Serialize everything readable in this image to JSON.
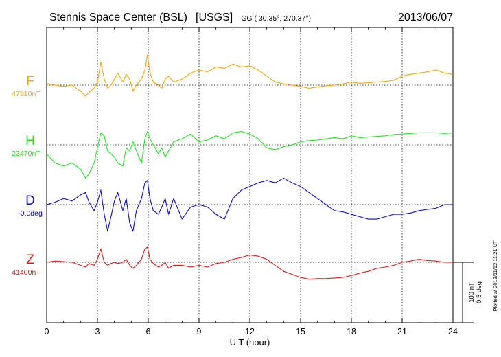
{
  "header": {
    "station": "Stennis Space Center (BSL)",
    "network": "[USGS]",
    "coords": "GG ( 30.35°, 270.37°)",
    "date": "2013/06/07"
  },
  "scale": {
    "nt": "100 nT",
    "deg": "0.5 deg",
    "plotted": "Plotted at 2013/11/12 11:21  UT"
  },
  "colors": {
    "F": "#f5a800",
    "H": "#1ee51e",
    "D": "#0a0ad2",
    "Z": "#e01a1a",
    "axis": "#000000"
  },
  "chart_data": {
    "type": "line",
    "title": "Stennis Space Center (BSL)  [USGS]",
    "xlabel": "U T (hour)",
    "xlim": [
      0,
      24
    ],
    "xticks": [
      0,
      3,
      6,
      9,
      12,
      15,
      18,
      21,
      24
    ],
    "xtick_labels": [
      "0",
      "3",
      "6",
      "9",
      "12",
      "15",
      "18",
      "21",
      "24"
    ],
    "grid": "dotted vertical lines every 3 hours",
    "series": [
      {
        "name": "F",
        "baseline": "47910nT",
        "unit": "nT",
        "offset_from_baseline": true,
        "x": [
          0,
          0.5,
          1,
          1.5,
          2,
          2.3,
          2.5,
          2.8,
          3,
          3.2,
          3.4,
          3.6,
          3.8,
          4.0,
          4.2,
          4.5,
          4.7,
          4.9,
          5.1,
          5.3,
          5.6,
          5.8,
          5.95,
          6.1,
          6.3,
          6.6,
          6.8,
          7.0,
          7.2,
          7.5,
          8,
          8.5,
          9,
          9.5,
          10,
          10.5,
          11,
          11.5,
          12,
          12.5,
          13,
          13.5,
          14,
          14.5,
          15,
          15.5,
          16,
          16.5,
          17,
          17.5,
          18,
          18.5,
          19,
          19.5,
          20,
          20.5,
          21,
          21.5,
          22,
          22.5,
          23,
          23.5,
          24
        ],
        "values": [
          3,
          0,
          -2,
          0,
          -10,
          -18,
          -12,
          -5,
          5,
          38,
          10,
          -5,
          0,
          10,
          20,
          5,
          18,
          10,
          -10,
          0,
          10,
          25,
          50,
          20,
          5,
          0,
          -5,
          10,
          15,
          5,
          10,
          20,
          25,
          22,
          30,
          28,
          35,
          30,
          32,
          25,
          15,
          5,
          2,
          0,
          -2,
          -5,
          -3,
          -1,
          0,
          2,
          5,
          3,
          4,
          5,
          6,
          8,
          15,
          18,
          20,
          22,
          25,
          20,
          18
        ]
      },
      {
        "name": "H",
        "baseline": "23470nT",
        "unit": "nT",
        "offset_from_baseline": true,
        "x": [
          0,
          0.5,
          1,
          1.5,
          2,
          2.3,
          2.5,
          2.8,
          3,
          3.2,
          3.4,
          3.6,
          3.8,
          4.0,
          4.2,
          4.5,
          4.7,
          4.9,
          5.1,
          5.3,
          5.6,
          5.8,
          5.95,
          6.1,
          6.3,
          6.6,
          6.8,
          7.0,
          7.2,
          7.5,
          8,
          8.5,
          9,
          9.5,
          10,
          10.5,
          11,
          11.5,
          12,
          12.5,
          13,
          13.5,
          14,
          14.5,
          15,
          15.5,
          16,
          16.5,
          17,
          17.5,
          18,
          18.5,
          19,
          19.5,
          20,
          20.5,
          21,
          21.5,
          22,
          22.5,
          23,
          23.5,
          24
        ],
        "values": [
          -15,
          -30,
          -35,
          -30,
          -40,
          -55,
          -48,
          -30,
          -5,
          20,
          15,
          -10,
          -15,
          -20,
          -30,
          -35,
          -5,
          -10,
          5,
          -10,
          -30,
          10,
          22,
          10,
          0,
          -15,
          -5,
          -20,
          -10,
          5,
          10,
          18,
          5,
          8,
          15,
          10,
          20,
          22,
          18,
          10,
          -5,
          -8,
          -3,
          0,
          5,
          7,
          8,
          10,
          12,
          10,
          15,
          12,
          13,
          14,
          15,
          17,
          18,
          19,
          20,
          20,
          20,
          19,
          20
        ]
      },
      {
        "name": "D",
        "baseline": "-0.0deg",
        "unit": "deg",
        "offset_from_baseline": true,
        "x": [
          0,
          0.5,
          1,
          1.5,
          2,
          2.3,
          2.5,
          2.8,
          3,
          3.2,
          3.4,
          3.6,
          3.8,
          4.0,
          4.2,
          4.5,
          4.7,
          4.9,
          5.1,
          5.3,
          5.6,
          5.8,
          5.95,
          6.1,
          6.3,
          6.6,
          6.8,
          7.0,
          7.2,
          7.5,
          8,
          8.5,
          9,
          9.5,
          10,
          10.5,
          11,
          11.5,
          12,
          12.5,
          13,
          13.5,
          14,
          14.5,
          15,
          15.5,
          16,
          16.5,
          17,
          17.5,
          18,
          18.5,
          19,
          19.5,
          20,
          20.5,
          21,
          21.5,
          22,
          22.5,
          23,
          23.5,
          24
        ],
        "values": [
          0,
          0.02,
          0.05,
          0.03,
          0.08,
          0.1,
          0.02,
          -0.05,
          0.02,
          0.12,
          -0.08,
          -0.22,
          -0.1,
          0.03,
          0.1,
          -0.05,
          0.05,
          -0.15,
          -0.22,
          -0.05,
          0.05,
          0.18,
          0.2,
          0.05,
          -0.05,
          -0.08,
          -0.02,
          0.05,
          -0.08,
          0.05,
          -0.12,
          -0.02,
          0,
          -0.02,
          -0.08,
          -0.12,
          0.05,
          0.12,
          0.15,
          0.18,
          0.2,
          0.18,
          0.22,
          0.18,
          0.15,
          0.1,
          0.05,
          0,
          -0.05,
          -0.06,
          -0.08,
          -0.1,
          -0.12,
          -0.12,
          -0.1,
          -0.08,
          -0.08,
          -0.07,
          -0.05,
          -0.04,
          -0.03,
          0,
          0
        ]
      },
      {
        "name": "Z",
        "baseline": "41400nT",
        "unit": "nT",
        "offset_from_baseline": true,
        "x": [
          0,
          0.5,
          1,
          1.5,
          2,
          2.3,
          2.5,
          2.8,
          3,
          3.2,
          3.4,
          3.6,
          3.8,
          4.0,
          4.2,
          4.5,
          4.7,
          4.9,
          5.1,
          5.3,
          5.6,
          5.8,
          5.95,
          6.1,
          6.3,
          6.6,
          6.8,
          7.0,
          7.2,
          7.5,
          8,
          8.5,
          9,
          9.5,
          10,
          10.5,
          11,
          11.5,
          12,
          12.5,
          13,
          13.5,
          14,
          14.5,
          15,
          15.5,
          16,
          16.5,
          17,
          17.5,
          18,
          18.5,
          19,
          19.5,
          20,
          20.5,
          21,
          21.5,
          22,
          22.5,
          23,
          23.5,
          24
        ],
        "values": [
          0,
          2,
          1,
          0,
          -5,
          -8,
          -2,
          -5,
          5,
          22,
          0,
          -5,
          -2,
          0,
          -2,
          0,
          5,
          -5,
          -10,
          -5,
          5,
          22,
          25,
          5,
          -2,
          -8,
          -5,
          0,
          -10,
          -5,
          -5,
          -8,
          -5,
          -8,
          -2,
          0,
          5,
          8,
          12,
          10,
          5,
          -5,
          -15,
          -20,
          -25,
          -28,
          -27,
          -27,
          -26,
          -25,
          -22,
          -18,
          -15,
          -10,
          -8,
          -5,
          0,
          2,
          5,
          3,
          2,
          0,
          0
        ]
      }
    ]
  }
}
